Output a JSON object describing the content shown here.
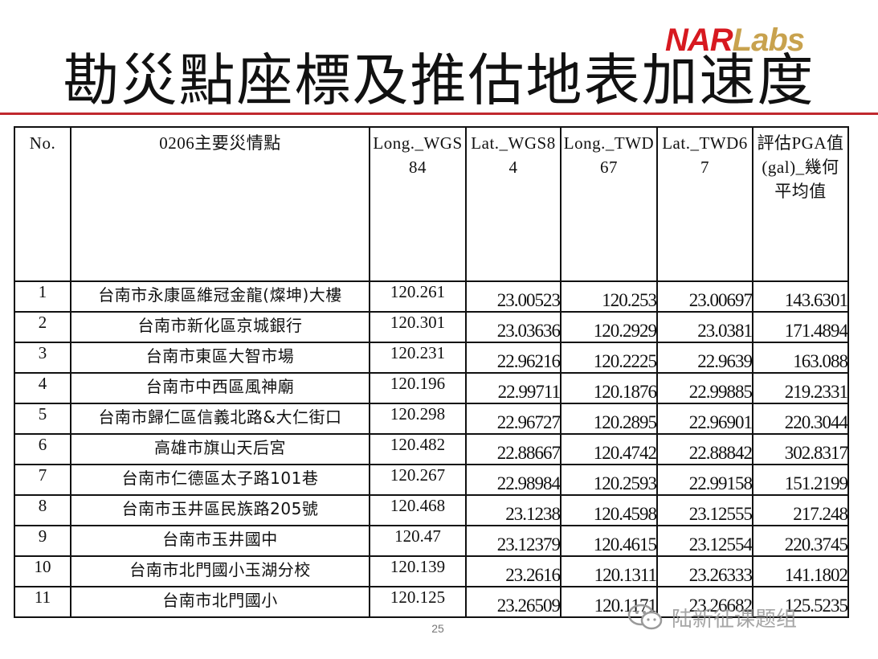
{
  "logo": {
    "brand_red": "NAR",
    "brand_gold": "Labs"
  },
  "title": "勘災點座標及推估地表加速度",
  "table": {
    "headers": {
      "no": "No.",
      "site": "0206主要災情點",
      "long_wgs84": "Long._WGS84",
      "lat_wgs84": "Lat._WGS84",
      "long_twd67": "Long._TWD67",
      "lat_twd67": "Lat._TWD67",
      "pga": "評估PGA值(gal)_幾何平均值"
    },
    "rows": [
      {
        "no": "1",
        "site": "台南市永康區維冠金龍(燦坤)大樓",
        "long_wgs84": "120.261",
        "lat_wgs84": "23.00523",
        "long_twd67": "120.253",
        "lat_twd67": "23.00697",
        "pga": "143.6301"
      },
      {
        "no": "2",
        "site": "台南市新化區京城銀行",
        "long_wgs84": "120.301",
        "lat_wgs84": "23.03636",
        "long_twd67": "120.2929",
        "lat_twd67": "23.0381",
        "pga": "171.4894"
      },
      {
        "no": "3",
        "site": "台南市東區大智市場",
        "long_wgs84": "120.231",
        "lat_wgs84": "22.96216",
        "long_twd67": "120.2225",
        "lat_twd67": "22.9639",
        "pga": "163.088"
      },
      {
        "no": "4",
        "site": "台南市中西區風神廟",
        "long_wgs84": "120.196",
        "lat_wgs84": "22.99711",
        "long_twd67": "120.1876",
        "lat_twd67": "22.99885",
        "pga": "219.2331"
      },
      {
        "no": "5",
        "site": "台南市歸仁區信義北路&大仁街口",
        "long_wgs84": "120.298",
        "lat_wgs84": "22.96727",
        "long_twd67": "120.2895",
        "lat_twd67": "22.96901",
        "pga": "220.3044"
      },
      {
        "no": "6",
        "site": "高雄市旗山天后宮",
        "long_wgs84": "120.482",
        "lat_wgs84": "22.88667",
        "long_twd67": "120.4742",
        "lat_twd67": "22.88842",
        "pga": "302.8317"
      },
      {
        "no": "7",
        "site": "台南市仁德區太子路101巷",
        "long_wgs84": "120.267",
        "lat_wgs84": "22.98984",
        "long_twd67": "120.2593",
        "lat_twd67": "22.99158",
        "pga": "151.2199"
      },
      {
        "no": "8",
        "site": "台南市玉井區民族路205號",
        "long_wgs84": "120.468",
        "lat_wgs84": "23.1238",
        "long_twd67": "120.4598",
        "lat_twd67": "23.12555",
        "pga": "217.248"
      },
      {
        "no": "9",
        "site": "台南市玉井國中",
        "long_wgs84": "120.47",
        "lat_wgs84": "23.12379",
        "long_twd67": "120.4615",
        "lat_twd67": "23.12554",
        "pga": "220.3745"
      },
      {
        "no": "10",
        "site": "台南市北門國小玉湖分校",
        "long_wgs84": "120.139",
        "lat_wgs84": "23.2616",
        "long_twd67": "120.1311",
        "lat_twd67": "23.26333",
        "pga": "141.1802"
      },
      {
        "no": "11",
        "site": "台南市北門國小",
        "long_wgs84": "120.125",
        "lat_wgs84": "23.26509",
        "long_twd67": "120.1171",
        "lat_twd67": "23.26682",
        "pga": "125.5235"
      }
    ]
  },
  "page_number": "25",
  "watermark": {
    "text": "陆新征课题组",
    "icon": "wechat-icon"
  },
  "colors": {
    "rule": "#c0282d",
    "logo_red": "#d71920",
    "logo_gold": "#c8a24e"
  }
}
